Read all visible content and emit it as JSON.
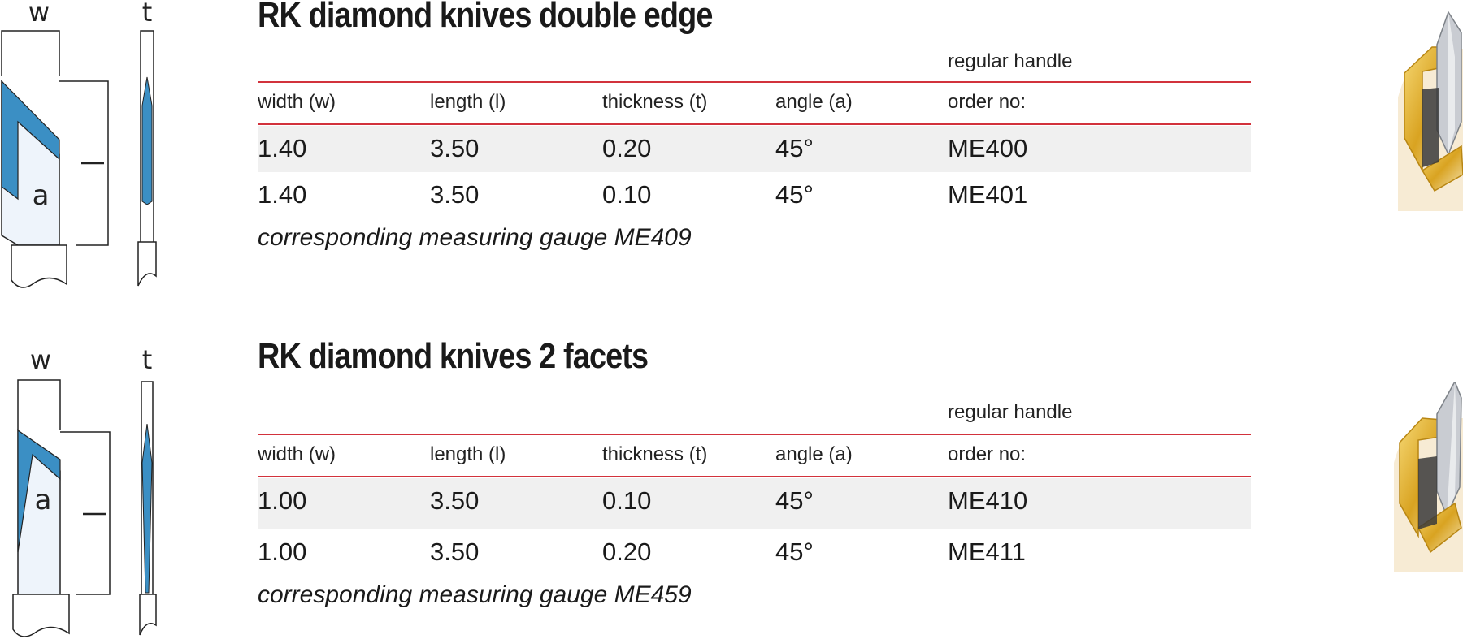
{
  "sections": [
    {
      "title": "RK diamond knives double edge",
      "diagram": {
        "width_label": "w",
        "thickness_label": "t",
        "angle_label": "a"
      },
      "handle_label": "regular handle",
      "headers": [
        "width (w)",
        "length (l)",
        "thickness (t)",
        "angle (a)",
        "order no:"
      ],
      "rows": [
        [
          "1.40",
          "3.50",
          "0.20",
          "45°",
          "ME400"
        ],
        [
          "1.40",
          "3.50",
          "0.10",
          "45°",
          "ME401"
        ]
      ],
      "gauge_note": "corresponding measuring gauge ME409"
    },
    {
      "title": "RK diamond knives 2 facets",
      "diagram": {
        "width_label": "w",
        "thickness_label": "t",
        "angle_label": "a"
      },
      "handle_label": "regular handle",
      "headers": [
        "width (w)",
        "length (l)",
        "thickness (t)",
        "angle (a)",
        "order no:"
      ],
      "rows": [
        [
          "1.00",
          "3.50",
          "0.10",
          "45°",
          "ME410"
        ],
        [
          "1.00",
          "3.50",
          "0.20",
          "45°",
          "ME411"
        ]
      ],
      "gauge_note": "corresponding measuring gauge ME459"
    }
  ],
  "colors": {
    "rule": "#d2323c",
    "blade_blue": "#3b8fc4",
    "blade_light": "#eef4fb",
    "gold": "#e2b233",
    "shade": "#f0f0f0"
  }
}
